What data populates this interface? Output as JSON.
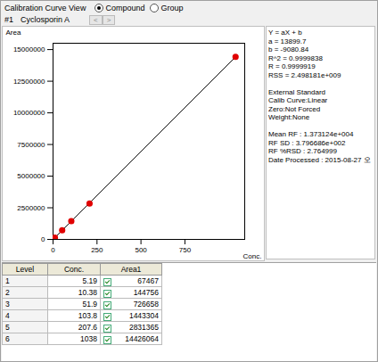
{
  "header": {
    "title": "Calibration Curve View",
    "options": [
      {
        "label": "Compound",
        "selected": true
      },
      {
        "label": "Group",
        "selected": false
      }
    ]
  },
  "compound": {
    "number": "#1",
    "name": "Cyclosporin A",
    "buttons": [
      "<",
      ">"
    ]
  },
  "chart_data": {
    "type": "scatter",
    "x_label": "Conc.",
    "y_label": "Area",
    "x": [
      5.19,
      10.38,
      51.9,
      103.8,
      207.6,
      1038
    ],
    "values": [
      67467,
      144756,
      726658,
      1443304,
      2831365,
      14426064
    ],
    "color": "#e00000",
    "marker": "circle",
    "fit": {
      "a": 13899.7,
      "b": -9080.84,
      "color": "#000000"
    },
    "xlim": [
      0,
      1090
    ],
    "xticks": [
      0,
      250,
      500,
      750
    ],
    "ylim": [
      0,
      15500000
    ],
    "yticks": [
      0,
      2500000,
      5000000,
      7500000,
      10000000,
      12500000,
      15000000
    ],
    "grid": false
  },
  "panel": {
    "equation": "Y = aX + b",
    "a": {
      "label": "a = ",
      "value": 13899.7
    },
    "b": {
      "label": "b = ",
      "value": -9080.84
    },
    "stats": [
      "R^2 = 0.9999838",
      "R = 0.9999919",
      "RSS = 2.498181e+009"
    ],
    "method": [
      "External Standard",
      "Calib Curve:Linear",
      "Zero:Not Forced",
      "Weight:None"
    ],
    "rf": [
      "Mean RF : 1.373124e+004",
      "RF SD : 3.796686e+002",
      "RF %RSD : 2.764999",
      "Date Processed : 2015-08-27 오"
    ]
  },
  "table": {
    "columns": [
      "Level",
      "Conc.",
      "Area1"
    ],
    "rows": [
      [
        1,
        "5.19",
        67467
      ],
      [
        2,
        "10.38",
        144756
      ],
      [
        3,
        "51.9",
        726658
      ],
      [
        4,
        "103.8",
        1443304
      ],
      [
        5,
        "207.6",
        2831365
      ],
      [
        6,
        "1038",
        14426064
      ]
    ]
  }
}
